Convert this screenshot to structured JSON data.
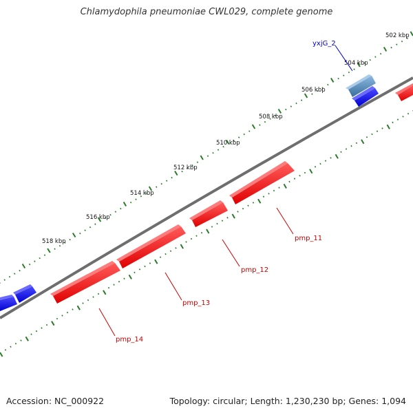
{
  "title": "Chlamydophila pneumoniae CWL029, complete genome",
  "footer": {
    "accession": "Accession: NC_000922",
    "summary": "Topology: circular; Length: 1,230,230 bp; Genes: 1,094"
  },
  "colors": {
    "backbone": "#7a7a7a",
    "tick": "#2a7a2a",
    "gene_red": "#ff1a1a",
    "gene_blue": "#1a1aff",
    "gene_steel": "#4682b4",
    "label_red": "#cc0000",
    "label_blue": "#0000cc"
  },
  "kbp_labels": [
    "502 kbp",
    "504 kbp",
    "506 kbp",
    "508 kbp",
    "510 kbp",
    "512 kbp",
    "514 kbp",
    "516 kbp",
    "518 kbp"
  ],
  "gene_labels": {
    "yxjG_2": "yxjG_2",
    "pmp_11": "pmp_11",
    "pmp_12": "pmp_12",
    "pmp_13": "pmp_13",
    "pmp_14": "pmp_14"
  }
}
